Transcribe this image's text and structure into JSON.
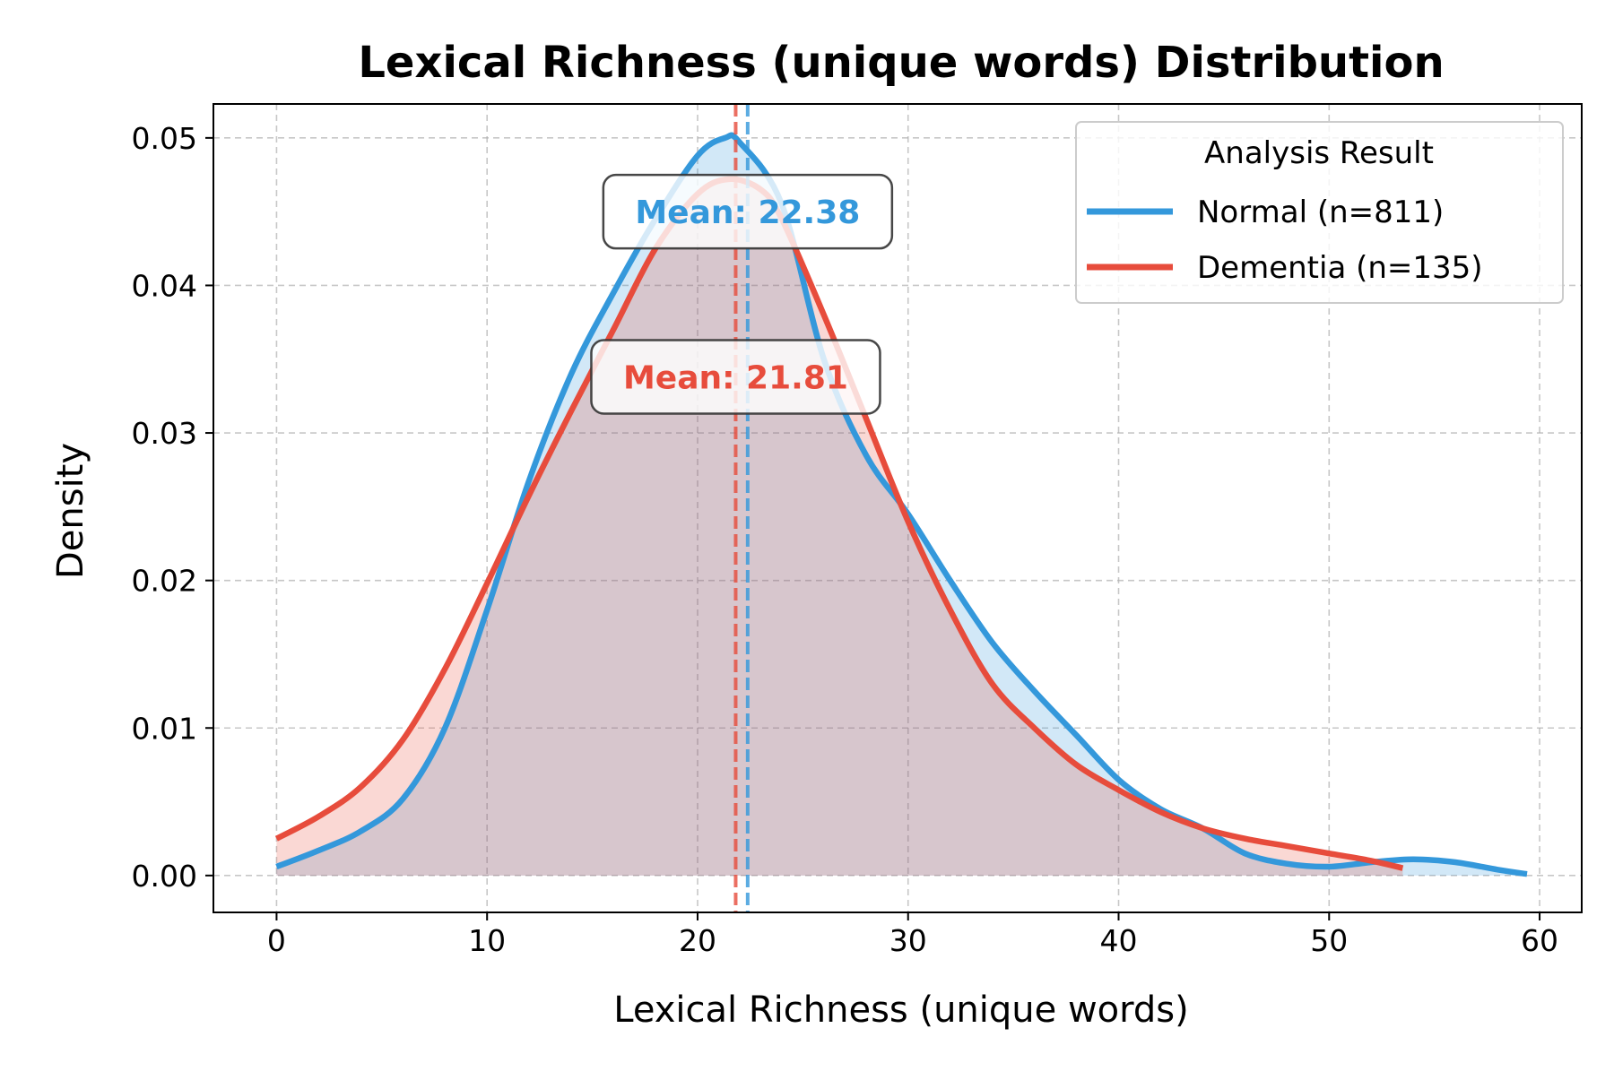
{
  "chart_data": {
    "type": "area",
    "title": "Lexical Richness (unique words) Distribution",
    "xlabel": "Lexical Richness (unique words)",
    "ylabel": "Density",
    "xlim": [
      -3,
      62
    ],
    "ylim": [
      -0.0025,
      0.0523
    ],
    "xticks": [
      0,
      10,
      20,
      30,
      40,
      50,
      60
    ],
    "yticks": [
      0.0,
      0.01,
      0.02,
      0.03,
      0.04,
      0.05
    ],
    "xtick_labels": [
      "0",
      "10",
      "20",
      "30",
      "40",
      "50",
      "60"
    ],
    "ytick_labels": [
      "0.00",
      "0.01",
      "0.02",
      "0.03",
      "0.04",
      "0.05"
    ],
    "grid": true,
    "legend": {
      "title": "Analysis Result",
      "position": "top-right"
    },
    "series": [
      {
        "name": "Normal (n=811)",
        "color": "#3498db",
        "mean": 22.38,
        "mean_label": "Mean: 22.38",
        "x": [
          0,
          2,
          4,
          6,
          8,
          10,
          12,
          14,
          16,
          18,
          20,
          21.3,
          22,
          24,
          26,
          28,
          30,
          32,
          34,
          36,
          38,
          40,
          42,
          44,
          46,
          48,
          50,
          52,
          54,
          56,
          58,
          59.4
        ],
        "y": [
          0.0006,
          0.0017,
          0.003,
          0.0052,
          0.01,
          0.018,
          0.0268,
          0.034,
          0.0395,
          0.0445,
          0.0488,
          0.05,
          0.0497,
          0.0455,
          0.035,
          0.0285,
          0.0245,
          0.02,
          0.0158,
          0.0125,
          0.0095,
          0.0065,
          0.0045,
          0.0032,
          0.0015,
          0.0008,
          0.0006,
          0.0009,
          0.0011,
          0.0009,
          0.0004,
          0.0001
        ]
      },
      {
        "name": "Dementia (n=135)",
        "color": "#e74c3c",
        "mean": 21.81,
        "mean_label": "Mean: 21.81",
        "x": [
          0,
          2,
          4,
          6,
          8,
          10,
          12,
          14,
          16,
          18,
          20,
          21.5,
          23,
          24,
          26,
          28,
          30,
          32,
          34,
          36,
          38,
          40,
          42,
          44,
          46,
          48,
          50,
          52,
          53.5
        ],
        "y": [
          0.0025,
          0.004,
          0.006,
          0.0092,
          0.014,
          0.0198,
          0.0258,
          0.0315,
          0.037,
          0.0425,
          0.0462,
          0.0472,
          0.0465,
          0.0445,
          0.038,
          0.031,
          0.024,
          0.018,
          0.013,
          0.01,
          0.0075,
          0.0058,
          0.0043,
          0.0032,
          0.0025,
          0.002,
          0.0015,
          0.001,
          0.0005
        ]
      }
    ]
  }
}
